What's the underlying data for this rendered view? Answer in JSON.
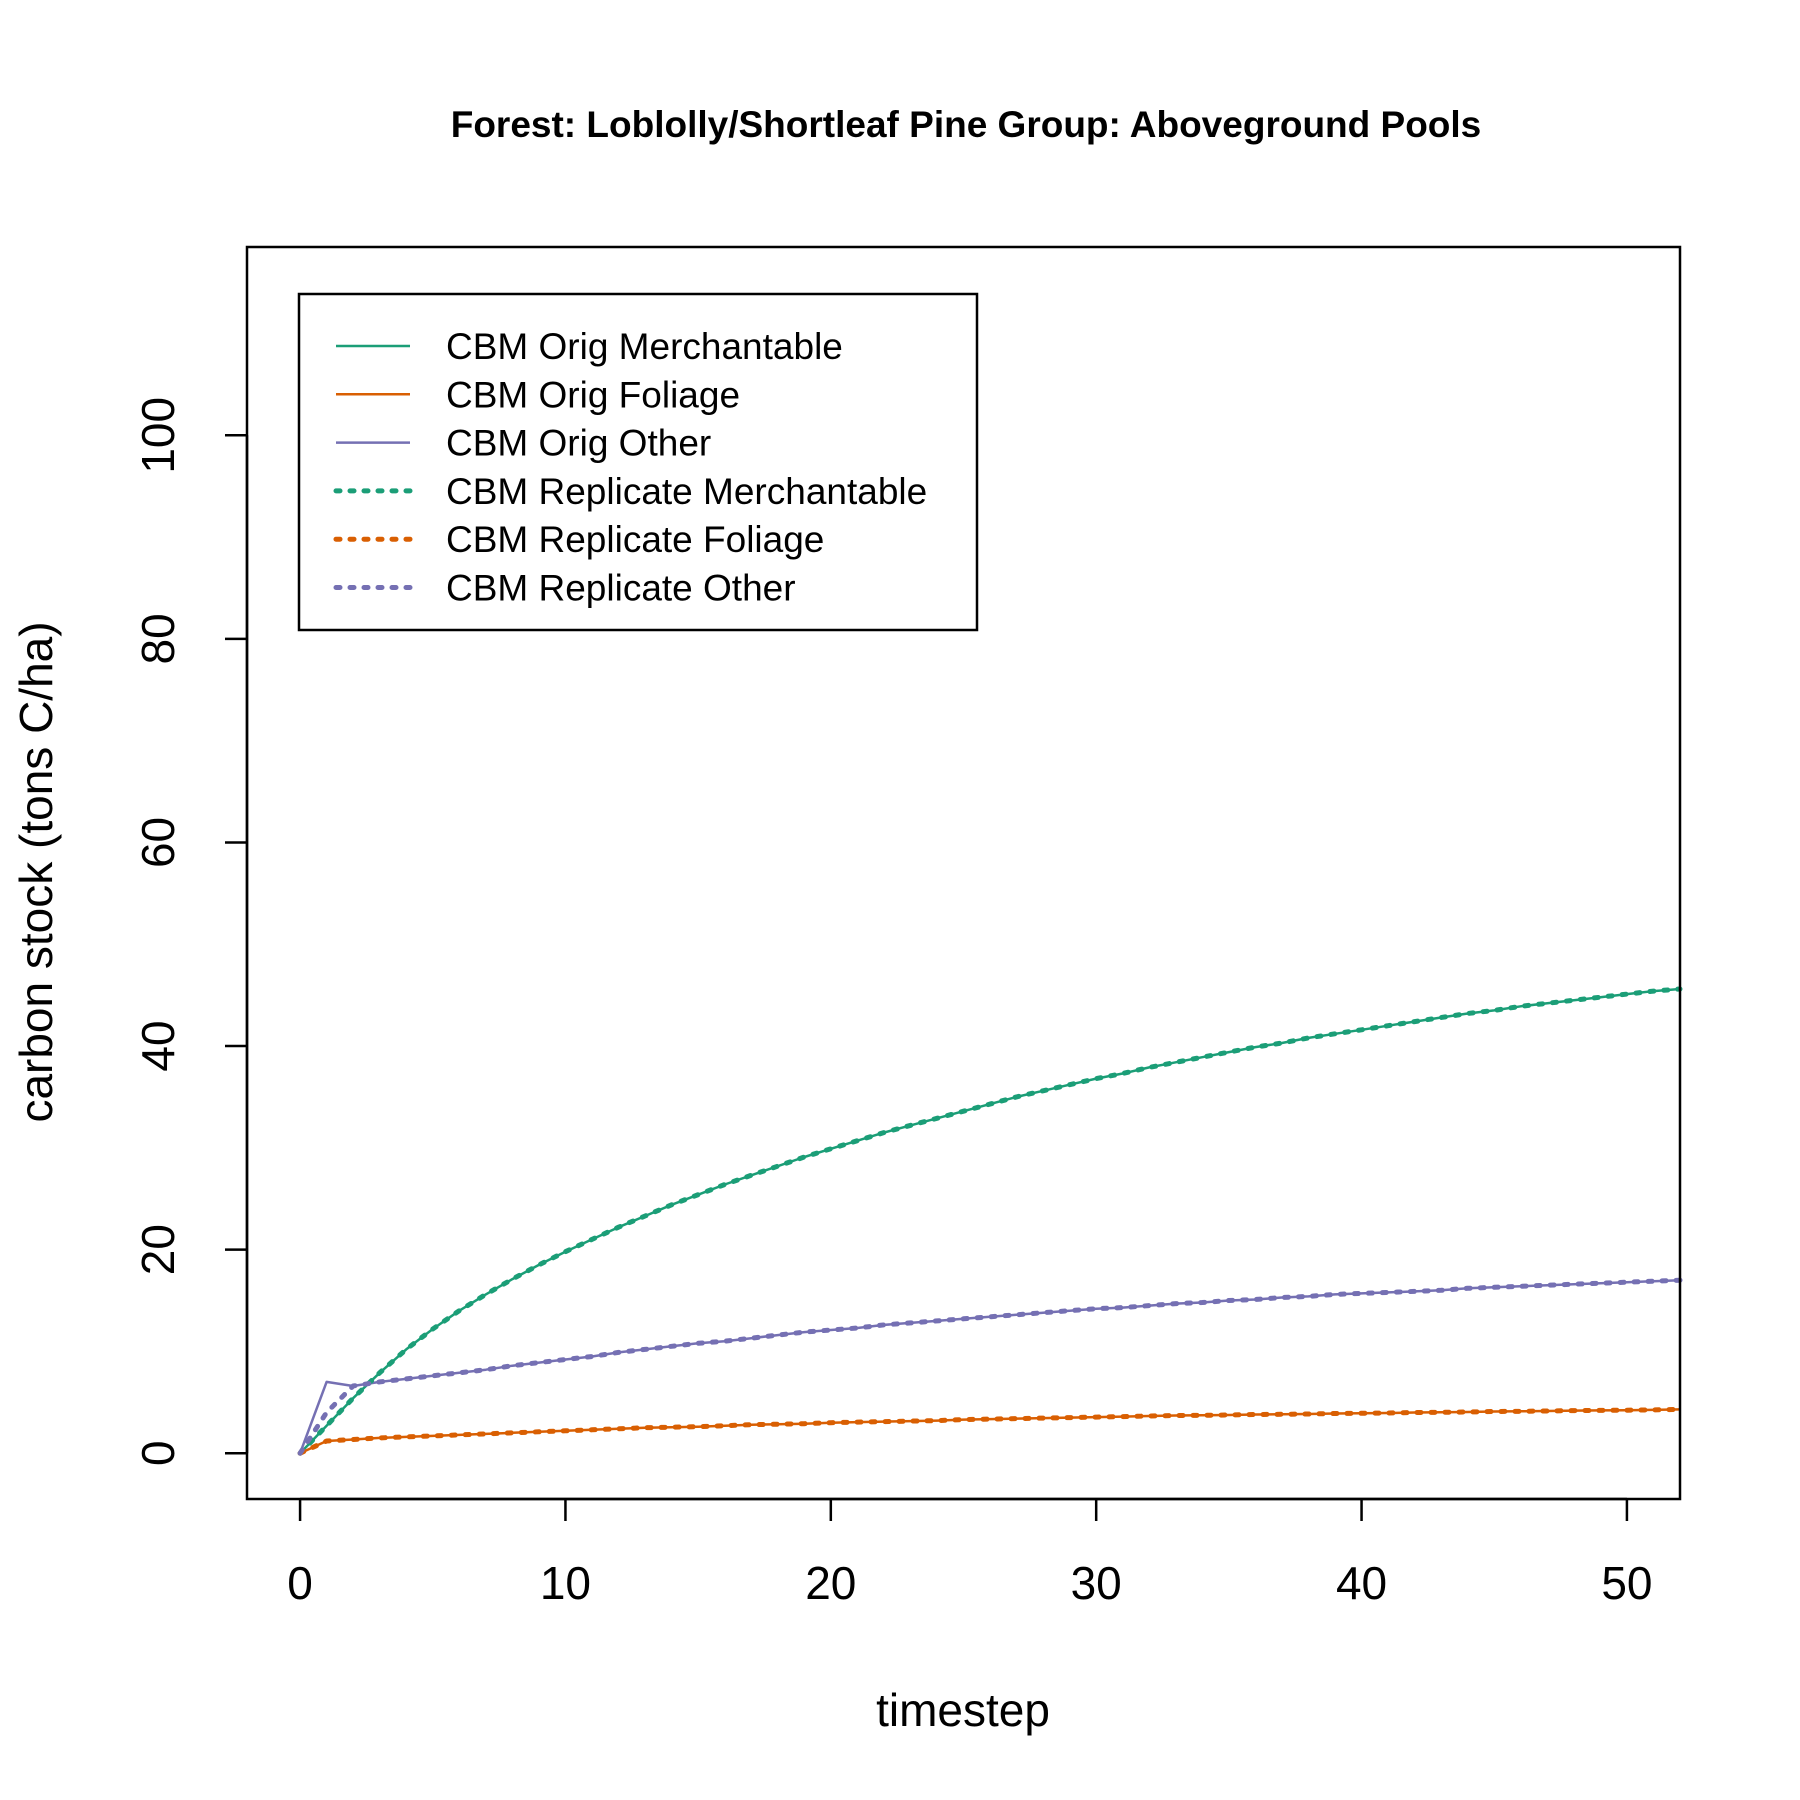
{
  "chart_data": {
    "type": "line",
    "title": "Forest: Loblolly/Shortleaf Pine Group: Aboveground Pools",
    "xlabel": "timestep",
    "ylabel": "carbon stock (tons C/ha)",
    "xlim": [
      -2,
      52
    ],
    "ylim": [
      -4.5,
      118.5
    ],
    "xticks": [
      0,
      10,
      20,
      30,
      40,
      50
    ],
    "yticks": [
      0,
      20,
      40,
      60,
      80,
      100
    ],
    "legend_position": "top-left",
    "x": [
      0,
      1,
      2,
      3,
      4,
      5,
      6,
      7,
      8,
      9,
      10,
      11,
      12,
      13,
      14,
      15,
      16,
      17,
      18,
      19,
      20,
      21,
      22,
      23,
      24,
      25,
      26,
      27,
      28,
      29,
      30,
      31,
      32,
      33,
      34,
      35,
      36,
      37,
      38,
      39,
      40,
      41,
      42,
      43,
      44,
      45,
      46,
      47,
      48,
      49,
      50,
      51,
      52
    ],
    "series": [
      {
        "name": "CBM Orig Merchantable",
        "color": "#1B9E77",
        "dash": "solid",
        "values": [
          0,
          2.7,
          5.4,
          7.9,
          10.2,
          12.2,
          14.0,
          15.6,
          17.1,
          18.5,
          19.8,
          21.0,
          22.2,
          23.3,
          24.4,
          25.4,
          26.4,
          27.3,
          28.2,
          29.1,
          29.9,
          30.7,
          31.5,
          32.2,
          32.9,
          33.6,
          34.3,
          35.0,
          35.6,
          36.2,
          36.8,
          37.3,
          37.9,
          38.4,
          38.9,
          39.4,
          39.9,
          40.3,
          40.8,
          41.2,
          41.6,
          42.0,
          42.4,
          42.8,
          43.2,
          43.5,
          43.9,
          44.2,
          44.5,
          44.8,
          45.1,
          45.4,
          45.6
        ]
      },
      {
        "name": "CBM Orig Foliage",
        "color": "#D95F02",
        "dash": "solid",
        "values": [
          0,
          1.2,
          1.35,
          1.5,
          1.6,
          1.7,
          1.8,
          1.9,
          2.0,
          2.1,
          2.2,
          2.3,
          2.4,
          2.5,
          2.55,
          2.6,
          2.7,
          2.8,
          2.85,
          2.9,
          3.0,
          3.05,
          3.1,
          3.15,
          3.2,
          3.3,
          3.35,
          3.4,
          3.45,
          3.5,
          3.55,
          3.6,
          3.65,
          3.7,
          3.72,
          3.75,
          3.8,
          3.82,
          3.85,
          3.9,
          3.92,
          3.95,
          4.0,
          4.02,
          4.05,
          4.1,
          4.12,
          4.15,
          4.18,
          4.2,
          4.22,
          4.25,
          4.3
        ]
      },
      {
        "name": "CBM Orig Other",
        "color": "#7570B3",
        "dash": "solid",
        "values": [
          0,
          7.0,
          6.6,
          7.0,
          7.3,
          7.6,
          7.9,
          8.2,
          8.6,
          8.9,
          9.2,
          9.5,
          9.9,
          10.2,
          10.5,
          10.8,
          11.0,
          11.3,
          11.6,
          11.9,
          12.1,
          12.3,
          12.6,
          12.8,
          13.0,
          13.2,
          13.4,
          13.6,
          13.8,
          14.0,
          14.2,
          14.3,
          14.5,
          14.7,
          14.8,
          15.0,
          15.1,
          15.3,
          15.4,
          15.6,
          15.7,
          15.8,
          15.9,
          16.0,
          16.2,
          16.3,
          16.4,
          16.5,
          16.6,
          16.7,
          16.8,
          16.9,
          17.0
        ]
      },
      {
        "name": "CBM Replicate Merchantable",
        "color": "#1B9E77",
        "dash": "dotted",
        "values": [
          0,
          2.7,
          5.4,
          7.9,
          10.2,
          12.2,
          14.0,
          15.6,
          17.1,
          18.5,
          19.8,
          21.0,
          22.2,
          23.3,
          24.4,
          25.4,
          26.4,
          27.3,
          28.2,
          29.1,
          29.9,
          30.7,
          31.5,
          32.2,
          32.9,
          33.6,
          34.3,
          35.0,
          35.6,
          36.2,
          36.8,
          37.3,
          37.9,
          38.4,
          38.9,
          39.4,
          39.9,
          40.3,
          40.8,
          41.2,
          41.6,
          42.0,
          42.4,
          42.8,
          43.2,
          43.5,
          43.9,
          44.2,
          44.5,
          44.8,
          45.1,
          45.4,
          45.6
        ]
      },
      {
        "name": "CBM Replicate Foliage",
        "color": "#D95F02",
        "dash": "dotted",
        "values": [
          0,
          1.2,
          1.35,
          1.5,
          1.6,
          1.7,
          1.8,
          1.9,
          2.0,
          2.1,
          2.2,
          2.3,
          2.4,
          2.5,
          2.55,
          2.6,
          2.7,
          2.8,
          2.85,
          2.9,
          3.0,
          3.05,
          3.1,
          3.15,
          3.2,
          3.3,
          3.35,
          3.4,
          3.45,
          3.5,
          3.55,
          3.6,
          3.65,
          3.7,
          3.72,
          3.75,
          3.8,
          3.82,
          3.85,
          3.9,
          3.92,
          3.95,
          4.0,
          4.02,
          4.05,
          4.1,
          4.12,
          4.15,
          4.18,
          4.2,
          4.22,
          4.25,
          4.3
        ]
      },
      {
        "name": "CBM Replicate Other",
        "color": "#7570B3",
        "dash": "dotted",
        "values": [
          0,
          4.0,
          6.6,
          7.0,
          7.3,
          7.6,
          7.9,
          8.2,
          8.6,
          8.9,
          9.2,
          9.5,
          9.9,
          10.2,
          10.5,
          10.8,
          11.0,
          11.3,
          11.6,
          11.9,
          12.1,
          12.3,
          12.6,
          12.8,
          13.0,
          13.2,
          13.4,
          13.6,
          13.8,
          14.0,
          14.2,
          14.3,
          14.5,
          14.7,
          14.8,
          15.0,
          15.1,
          15.3,
          15.4,
          15.6,
          15.7,
          15.8,
          15.9,
          16.0,
          16.2,
          16.3,
          16.4,
          16.5,
          16.6,
          16.7,
          16.8,
          16.9,
          17.0
        ]
      }
    ]
  }
}
